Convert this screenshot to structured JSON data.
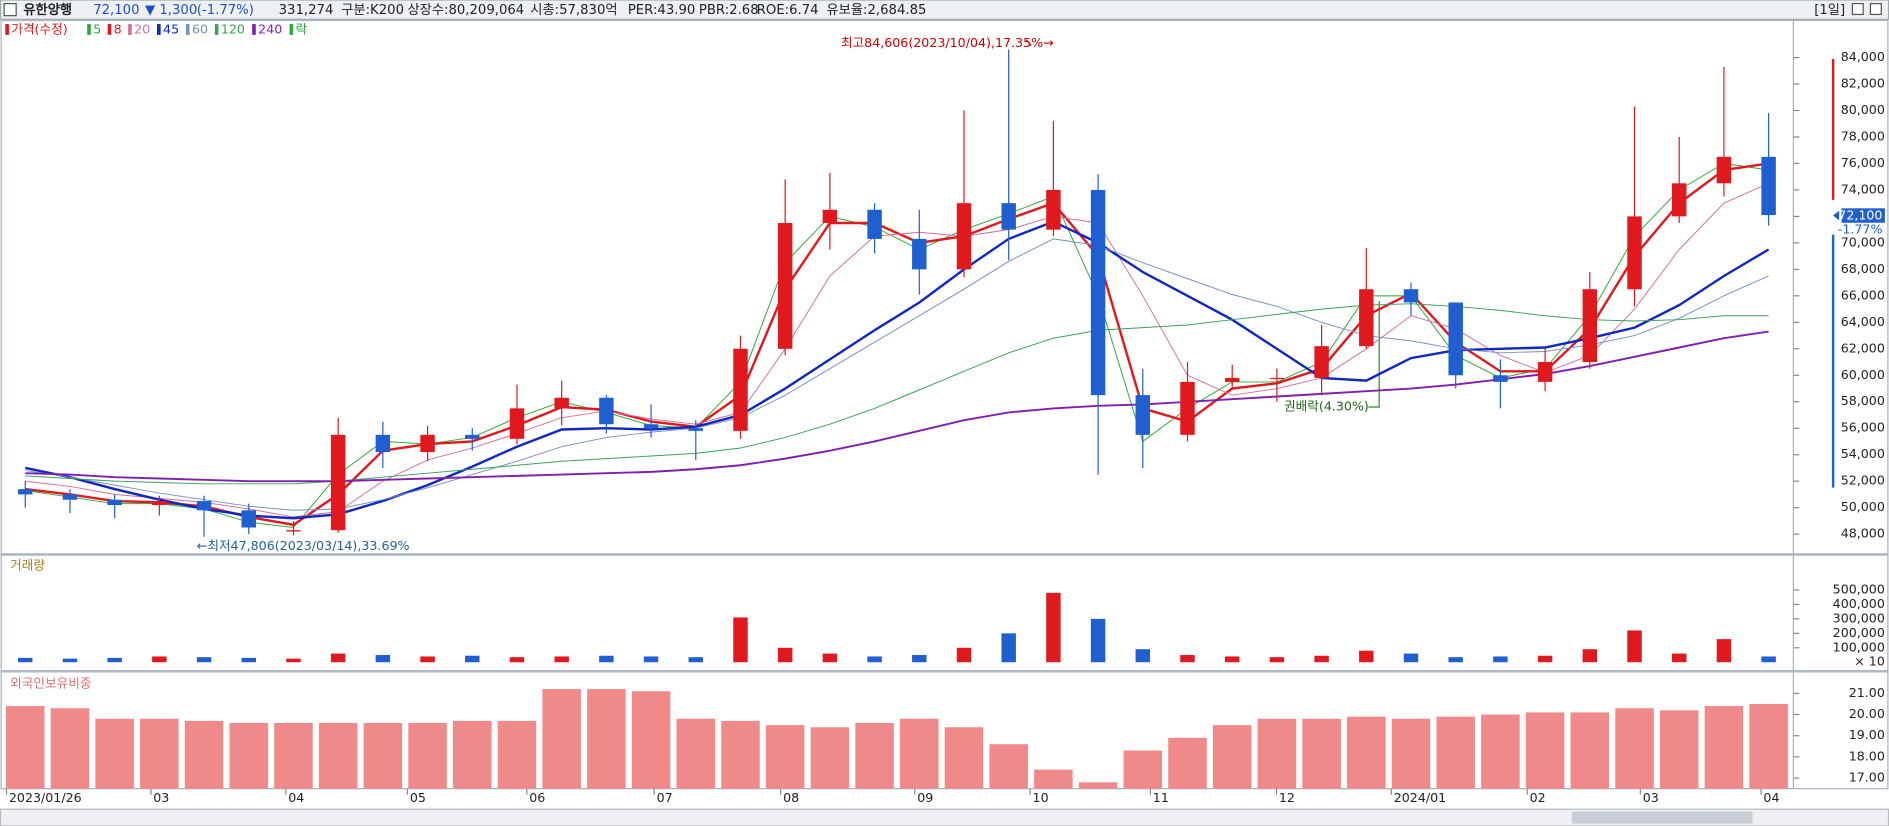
{
  "header": {
    "name": "유한양행",
    "price": "72,100",
    "change": "▼ 1,300",
    "change_pct": "(-1.77%)",
    "volume": "331,274",
    "group": "구분:K200",
    "shares": "상장수:80,209,064",
    "market_cap": "시총:57,830억",
    "per": "PER:43.90",
    "pbr": "PBR:2.68",
    "roe": "ROE:6.74",
    "reserve": "유보율:2,684.85",
    "period": "[1일]"
  },
  "chart_data": [
    {
      "type": "candlestick",
      "legend_title": "가격(수정)",
      "up_color": "#e0191e",
      "down_color": "#1f5fcf",
      "open": [
        51400,
        51000,
        50600,
        50200,
        50500,
        49800,
        48200,
        48300,
        55500,
        54200,
        55500,
        55200,
        57500,
        58300,
        56300,
        56000,
        55800,
        62000,
        71500,
        72500,
        70300,
        68000,
        73000,
        71000,
        74000,
        58500,
        55500,
        59500,
        59800,
        59800,
        62200,
        66500,
        65500,
        60000,
        59500,
        61000,
        66500,
        72000,
        74500,
        76500
      ],
      "high": [
        52000,
        51400,
        51000,
        50900,
        50900,
        50300,
        49000,
        56800,
        56500,
        56200,
        56000,
        59300,
        59600,
        58500,
        57800,
        56600,
        63000,
        74800,
        75300,
        73000,
        72500,
        80000,
        84600,
        79200,
        75200,
        60500,
        61000,
        60800,
        60500,
        63800,
        69600,
        67000,
        65500,
        61200,
        62000,
        67800,
        80300,
        78000,
        83300,
        79800
      ],
      "low": [
        50000,
        49600,
        49200,
        49400,
        47800,
        48000,
        47900,
        48100,
        53000,
        53500,
        54300,
        54800,
        56200,
        55600,
        55300,
        53600,
        55200,
        61500,
        69500,
        69200,
        66100,
        67400,
        68700,
        70500,
        52500,
        53000,
        55000,
        58900,
        58000,
        58500,
        62000,
        64500,
        59000,
        57500,
        58800,
        60500,
        65200,
        71500,
        73500,
        71300
      ],
      "close": [
        51000,
        50600,
        50200,
        50500,
        49800,
        48500,
        48300,
        55500,
        54200,
        55500,
        55200,
        57500,
        58300,
        56300,
        56000,
        55800,
        62000,
        71500,
        72500,
        70300,
        68000,
        73000,
        71000,
        74000,
        58500,
        55500,
        59500,
        59800,
        59800,
        62200,
        66500,
        65500,
        60000,
        59500,
        61000,
        66500,
        72000,
        74500,
        76500,
        72100
      ],
      "series": [
        {
          "name": "5",
          "color": "#2fa83a",
          "line_width": 0.8,
          "values": [
            51300,
            50800,
            50300,
            50300,
            49900,
            48900,
            48500,
            52500,
            55000,
            54800,
            55300,
            56800,
            58000,
            57200,
            56200,
            56000,
            59500,
            68500,
            72000,
            71200,
            69500,
            71000,
            72200,
            73500,
            66000,
            55000,
            57500,
            59500,
            59500,
            61000,
            66000,
            66000,
            61500,
            59800,
            60500,
            64500,
            70500,
            74000,
            76000,
            75500
          ]
        },
        {
          "name": "8",
          "color": "#e0191e",
          "line_width": 2,
          "values": [
            51400,
            51000,
            50500,
            50400,
            50100,
            49300,
            48700,
            51000,
            54300,
            54800,
            55000,
            56200,
            57600,
            57400,
            56500,
            56100,
            58500,
            66500,
            71500,
            71500,
            70000,
            70500,
            71800,
            73000,
            69000,
            57500,
            56500,
            59000,
            59400,
            60500,
            64500,
            66200,
            62500,
            60300,
            60300,
            63500,
            69000,
            73000,
            75500,
            76000
          ]
        },
        {
          "name": "20",
          "color": "#d070a0",
          "line_width": 0.8,
          "values": [
            52000,
            51600,
            51000,
            50700,
            50400,
            49900,
            49300,
            49700,
            52000,
            53600,
            54500,
            55600,
            56800,
            57300,
            56700,
            56300,
            57200,
            62000,
            67500,
            70500,
            70800,
            70500,
            71000,
            72000,
            71500,
            66000,
            60000,
            58500,
            59000,
            59800,
            62000,
            64500,
            63500,
            61500,
            60200,
            61500,
            65000,
            69500,
            73000,
            74500
          ]
        },
        {
          "name": "45",
          "color": "#1028c0",
          "line_width": 2,
          "values": [
            53000,
            52300,
            51400,
            50600,
            49900,
            49400,
            49200,
            49500,
            50500,
            51700,
            53100,
            54600,
            55900,
            56000,
            55900,
            56100,
            57000,
            59000,
            61200,
            63400,
            65500,
            68000,
            70300,
            71600,
            70000,
            67800,
            66000,
            64200,
            62000,
            59800,
            59600,
            61300,
            61900,
            62000,
            62100,
            62800,
            63600,
            65300,
            67500,
            69500
          ]
        },
        {
          "name": "60",
          "color": "#7890c0",
          "line_width": 0.8,
          "values": [
            52800,
            52300,
            51700,
            51100,
            50600,
            50100,
            49800,
            49900,
            50600,
            51500,
            52500,
            53500,
            54600,
            55300,
            55700,
            56000,
            56800,
            58500,
            60500,
            62500,
            64500,
            66500,
            68600,
            70300,
            69800,
            68500,
            67300,
            66100,
            65200,
            64000,
            63000,
            62600,
            62000,
            61700,
            61800,
            62300,
            63000,
            64300,
            66000,
            67500
          ]
        },
        {
          "name": "120",
          "color": "#3aa05a",
          "line_width": 0.8,
          "values": [
            52400,
            52200,
            52000,
            51900,
            51800,
            51800,
            51800,
            52000,
            52300,
            52600,
            52900,
            53200,
            53500,
            53700,
            53900,
            54100,
            54500,
            55300,
            56300,
            57500,
            58900,
            60300,
            61700,
            62800,
            63400,
            63600,
            63800,
            64200,
            64600,
            65000,
            65300,
            65400,
            65200,
            64900,
            64500,
            64200,
            64100,
            64200,
            64500,
            64500
          ]
        },
        {
          "name": "240",
          "color": "#8020b0",
          "line_width": 1.6,
          "values": [
            52600,
            52500,
            52300,
            52200,
            52100,
            52000,
            52000,
            52000,
            52100,
            52200,
            52300,
            52400,
            52500,
            52600,
            52700,
            52900,
            53200,
            53700,
            54300,
            55000,
            55800,
            56600,
            57200,
            57500,
            57700,
            57800,
            58000,
            58200,
            58400,
            58600,
            58800,
            59000,
            59300,
            59700,
            60100,
            60700,
            61400,
            62100,
            62800,
            63300
          ]
        }
      ],
      "ex_rights_legend": "락",
      "ex_rights_color": "#2fa83a",
      "annotations": [
        "최고84,606(2023/10/04),17.35%→",
        "←최저47,806(2023/03/14),33.69%",
        "권배락(4.30%)"
      ],
      "price_tag": "72,100",
      "change_tag": "-1.77%",
      "ylim": [
        46600,
        86800
      ],
      "yticks": [
        {
          "value": 48000,
          "label": "48,000"
        },
        {
          "value": 50000,
          "label": "50,000"
        },
        {
          "value": 52000,
          "label": "52,000"
        },
        {
          "value": 54000,
          "label": "54,000"
        },
        {
          "value": 56000,
          "label": "56,000"
        },
        {
          "value": 58000,
          "label": "58,000"
        },
        {
          "value": 60000,
          "label": "60,000"
        },
        {
          "value": 62000,
          "label": "62,000"
        },
        {
          "value": 64000,
          "label": "64,000"
        },
        {
          "value": 66000,
          "label": "66,000"
        },
        {
          "value": 68000,
          "label": "68,000"
        },
        {
          "value": 70000,
          "label": "70,000"
        },
        {
          "value": 72000,
          "label": "72,000"
        },
        {
          "value": 74000,
          "label": "74,000"
        },
        {
          "value": 76000,
          "label": "76,000"
        },
        {
          "value": 78000,
          "label": "78,000"
        },
        {
          "value": 80000,
          "label": "80,000"
        },
        {
          "value": 82000,
          "label": "82,000"
        },
        {
          "value": 84000,
          "label": "84,000"
        }
      ]
    },
    {
      "type": "bar",
      "title": "거래량",
      "unit_label": "× 10",
      "values": [
        30000,
        25000,
        30000,
        40000,
        35000,
        30000,
        25000,
        60000,
        50000,
        40000,
        45000,
        35000,
        40000,
        45000,
        40000,
        35000,
        310000,
        100000,
        60000,
        40000,
        50000,
        100000,
        200000,
        480000,
        300000,
        90000,
        50000,
        40000,
        35000,
        45000,
        80000,
        60000,
        35000,
        40000,
        45000,
        90000,
        220000,
        60000,
        160000,
        40000
      ],
      "ylim": [
        -50000,
        733000
      ],
      "yticks": [
        {
          "value": 100000,
          "label": "100,000"
        },
        {
          "value": 200000,
          "label": "200,000"
        },
        {
          "value": 300000,
          "label": "300,000"
        },
        {
          "value": 400000,
          "label": "400,000"
        },
        {
          "value": 500000,
          "label": "500,000"
        }
      ]
    },
    {
      "type": "bar",
      "title": "외국인보유비중",
      "color": "#f08a8a",
      "values": [
        20.4,
        20.3,
        19.8,
        19.8,
        19.7,
        19.6,
        19.6,
        19.6,
        19.6,
        19.6,
        19.7,
        19.7,
        21.2,
        21.2,
        21.1,
        19.8,
        19.7,
        19.5,
        19.4,
        19.6,
        19.8,
        19.4,
        18.6,
        17.4,
        16.8,
        18.3,
        18.9,
        19.5,
        19.8,
        19.8,
        19.9,
        19.8,
        19.9,
        20.0,
        20.1,
        20.1,
        20.3,
        20.2,
        20.4,
        20.5
      ],
      "ylim": [
        16.5,
        21.9
      ],
      "yticks": [
        {
          "value": 17,
          "label": "17.00"
        },
        {
          "value": 18,
          "label": "18.00"
        },
        {
          "value": 19,
          "label": "19.00"
        },
        {
          "value": 20,
          "label": "20.00"
        },
        {
          "value": 21,
          "label": "21.00"
        }
      ],
      "xticks": [
        {
          "value": -0.42,
          "label": "2023/01/26"
        },
        {
          "value": 2.81,
          "label": "03"
        },
        {
          "value": 5.83,
          "label": "04"
        },
        {
          "value": 8.55,
          "label": "05"
        },
        {
          "value": 11.22,
          "label": "06"
        },
        {
          "value": 14.07,
          "label": "07"
        },
        {
          "value": 16.9,
          "label": "08"
        },
        {
          "value": 19.9,
          "label": "09"
        },
        {
          "value": 22.48,
          "label": "10"
        },
        {
          "value": 25.17,
          "label": "11"
        },
        {
          "value": 27.99,
          "label": "12"
        },
        {
          "value": 30.56,
          "label": "2024/01"
        },
        {
          "value": 33.6,
          "label": "02"
        },
        {
          "value": 36.13,
          "label": "03"
        },
        {
          "value": 38.83,
          "label": "04"
        }
      ]
    }
  ]
}
